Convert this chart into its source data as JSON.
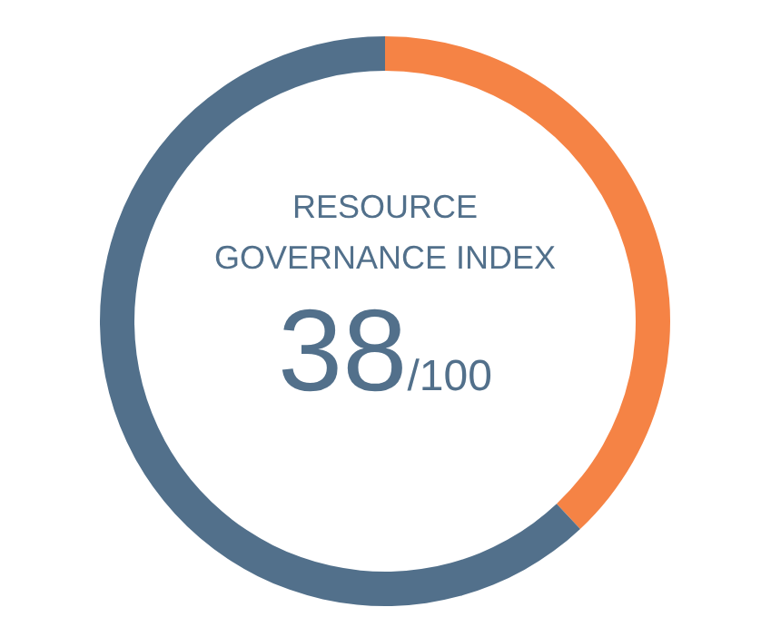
{
  "chart_data": {
    "type": "donut",
    "title": "RESOURCE GOVERNANCE INDEX",
    "categories": [
      null,
      null
    ],
    "values": [
      38,
      62
    ],
    "colors": [
      "#f58345",
      "#52708b"
    ],
    "annotations": [
      "38/100"
    ]
  }
}
